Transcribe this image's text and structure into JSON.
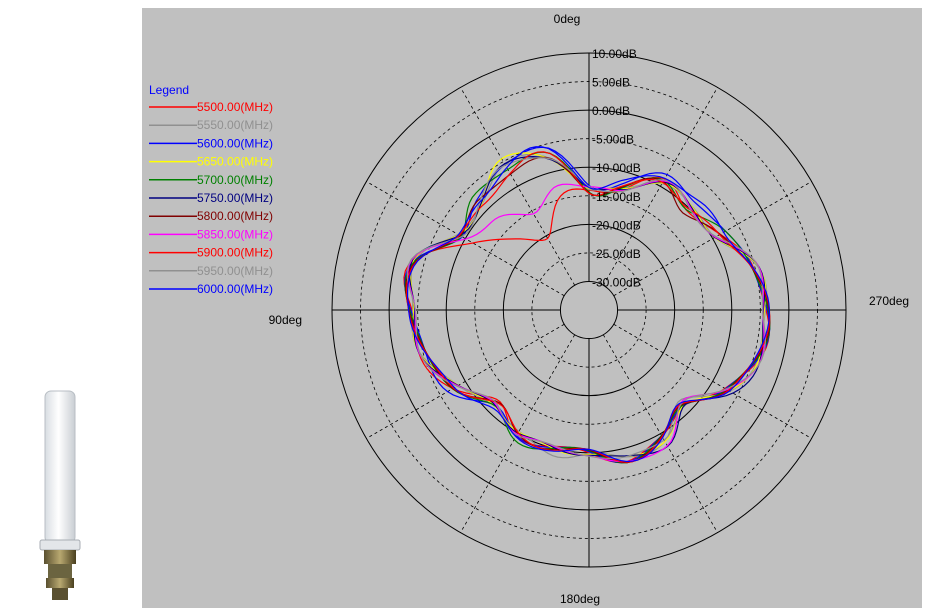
{
  "chart_data": {
    "type": "polar-line",
    "angle_labels": {
      "top": "0deg",
      "right": "270deg",
      "bottom": "180deg",
      "left": "90deg"
    },
    "radial_labels": [
      "10.00dB",
      "5.00dB",
      "0.00dB",
      "-5.00dB",
      "-10.00dB",
      "-15.00dB",
      "-20.00dB",
      "-25.00dB",
      "-30.00dB"
    ],
    "radial_range_db": [
      -35,
      10
    ],
    "grid": true,
    "legend": {
      "title": "Legend",
      "placement": "top-left"
    },
    "series": [
      {
        "name": "5500.00(MHz)",
        "color": "#ff0000"
      },
      {
        "name": "5550.00(MHz)",
        "color": "#909090"
      },
      {
        "name": "5600.00(MHz)",
        "color": "#0000ff"
      },
      {
        "name": "5650.00(MHz)",
        "color": "#ffff00"
      },
      {
        "name": "5700.00(MHz)",
        "color": "#008000"
      },
      {
        "name": "5750.00(MHz)",
        "color": "#000080"
      },
      {
        "name": "5800.00(MHz)",
        "color": "#800000"
      },
      {
        "name": "5850.00(MHz)",
        "color": "#ff00ff"
      },
      {
        "name": "5900.00(MHz)",
        "color": "#ff0000"
      },
      {
        "name": "5950.00(MHz)",
        "color": "#909090"
      },
      {
        "name": "6000.00(MHz)",
        "color": "#0000ff"
      }
    ],
    "pattern_db": {
      "angles_deg": [
        0,
        15,
        30,
        45,
        60,
        75,
        90,
        105,
        120,
        135,
        150,
        165,
        180,
        195,
        210,
        225,
        240,
        255,
        270,
        285,
        300,
        315,
        330,
        345
      ],
      "base": [
        -14,
        -7,
        -6,
        -8,
        -9,
        -3,
        -4,
        -5,
        -8,
        -12,
        -10,
        -10,
        -10,
        -8,
        -9,
        -12,
        -7,
        -4,
        -4,
        -5,
        -9,
        -10,
        -9,
        -13
      ],
      "offsets": [
        [
          0,
          -8,
          -14,
          -10,
          -2,
          0,
          0,
          1,
          0,
          0,
          0,
          0,
          0,
          0,
          0,
          0,
          0,
          0,
          0,
          0,
          0,
          0,
          0,
          0
        ],
        [
          0,
          0,
          0,
          0,
          0,
          0,
          0,
          0,
          0,
          0,
          0,
          1,
          0,
          0,
          0,
          0,
          0,
          0,
          0,
          0,
          0,
          0,
          0,
          0
        ],
        [
          1,
          1,
          1,
          0,
          0,
          0,
          0,
          0,
          1,
          1,
          0,
          0,
          0,
          0,
          0,
          0,
          0,
          0,
          0,
          0,
          1,
          2,
          1,
          1
        ],
        [
          0,
          0,
          1,
          0,
          0,
          0,
          0,
          0,
          0,
          0,
          0,
          0,
          0,
          0,
          0,
          1,
          0,
          0,
          0,
          0,
          0,
          0,
          0,
          0
        ],
        [
          0,
          0,
          0,
          1,
          0,
          0,
          0,
          0,
          0,
          1,
          1,
          0,
          0,
          0,
          0,
          0,
          0,
          0,
          0,
          0,
          1,
          0,
          0,
          0
        ],
        [
          0,
          0,
          0,
          0,
          0,
          0,
          0,
          0,
          0,
          0,
          0,
          0,
          0,
          0,
          1,
          1,
          1,
          0,
          0,
          0,
          0,
          0,
          0,
          0
        ],
        [
          0,
          -1,
          -1,
          0,
          0,
          0,
          0,
          0,
          0,
          0,
          0,
          0,
          0,
          0,
          0,
          0,
          0,
          0,
          0,
          0,
          0,
          -1,
          0,
          0
        ],
        [
          0,
          -5,
          -10,
          -4,
          -1,
          0,
          0,
          0,
          0,
          0,
          0,
          0,
          0,
          1,
          1,
          0,
          0,
          0,
          0,
          0,
          0,
          0,
          0,
          0
        ],
        [
          0,
          0,
          -1,
          -1,
          0,
          0,
          0,
          0,
          0,
          0,
          0,
          0,
          0,
          0,
          0,
          0,
          0,
          0,
          0,
          0,
          0,
          0,
          0,
          0
        ],
        [
          0,
          0,
          0,
          0,
          0,
          0,
          0,
          0,
          0,
          0,
          0,
          0,
          0,
          0,
          0,
          0,
          0,
          0,
          0,
          0,
          0,
          0,
          0,
          0
        ],
        [
          1,
          1,
          0,
          0,
          0,
          0,
          0,
          0,
          0,
          1,
          1,
          0,
          0,
          0,
          0,
          0,
          0,
          0,
          0,
          0,
          1,
          2,
          1,
          1
        ]
      ]
    }
  }
}
